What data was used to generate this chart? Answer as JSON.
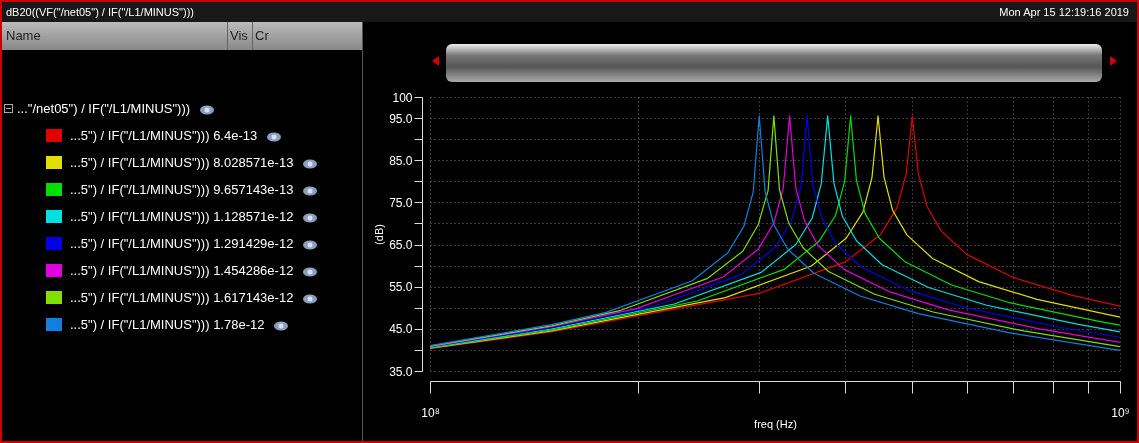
{
  "chart_data": {
    "type": "line",
    "title": "dB20((VF(\"/net05\") / IF(\"/L1/MINUS\")))",
    "xlabel": "freq (Hz)",
    "ylabel": "(dB)",
    "legend_title": "...\"/net05\") / IF(\"/L1/MINUS\")))",
    "legend": "left",
    "grid": true,
    "log": "x",
    "annotations": [
      "Name",
      "Vis",
      "Cr",
      "Mon Apr 15 12:19:16 2019"
    ],
    "xlim": [
      100000000,
      1000000000
    ],
    "ylim": [
      35,
      100
    ],
    "xticks": [
      {
        "value": 100000000,
        "label": "10⁸"
      },
      {
        "value": 200000000,
        "label": null
      },
      {
        "value": 300000000,
        "label": null
      },
      {
        "value": 400000000,
        "label": null
      },
      {
        "value": 500000000,
        "label": null
      },
      {
        "value": 600000000,
        "label": null
      },
      {
        "value": 700000000,
        "label": null
      },
      {
        "value": 800000000,
        "label": null
      },
      {
        "value": 900000000,
        "label": null
      },
      {
        "value": 1000000000,
        "label": "10⁹"
      }
    ],
    "yticks": [
      {
        "value": 35,
        "label": "35.0"
      },
      {
        "value": 40,
        "label": null
      },
      {
        "value": 45,
        "label": "45.0"
      },
      {
        "value": 50,
        "label": null
      },
      {
        "value": 55,
        "label": "55.0"
      },
      {
        "value": 60,
        "label": null
      },
      {
        "value": 65,
        "label": "65.0"
      },
      {
        "value": 70,
        "label": null
      },
      {
        "value": 75,
        "label": "75.0"
      },
      {
        "value": 80,
        "label": null
      },
      {
        "value": 85,
        "label": "85.0"
      },
      {
        "value": 90,
        "label": null
      },
      {
        "value": 95,
        "label": "95.0"
      },
      {
        "value": 100,
        "label": "100"
      }
    ],
    "series": [
      {
        "name": "...5\") / IF(\"/L1/MINUS\"))) 6.4e-13",
        "color": "#e00000",
        "x": [
          100000000,
          150000000,
          300000000,
          400000000,
          450000000,
          475000000,
          490000000,
          500000000,
          510000000,
          525000000,
          550000000,
          600000000,
          700000000,
          850000000,
          1000000000
        ],
        "values": [
          40.3,
          44.3,
          53.4,
          60.9,
          67.4,
          73.7,
          81.8,
          95.5,
          82.0,
          74.1,
          68.3,
          62.6,
          57.2,
          53.0,
          50.4
        ]
      },
      {
        "name": "...5\") / IF(\"/L1/MINUS\"))) 8.028571e-13",
        "color": "#e0e000",
        "x": [
          100000000,
          150000000,
          268000000,
          357000000,
          401000000,
          424000000,
          437000000,
          446000000,
          455000000,
          468000000,
          491000000,
          535000000,
          624000000,
          758000000,
          1000000000
        ],
        "values": [
          40.4,
          44.5,
          52.4,
          59.9,
          66.5,
          72.7,
          80.8,
          95.5,
          81.0,
          73.2,
          67.3,
          61.7,
          56.2,
          52.0,
          47.8
        ]
      },
      {
        "name": "...5\") / IF(\"/L1/MINUS\"))) 9.657143e-13",
        "color": "#00e000",
        "x": [
          100000000,
          150000000,
          244000000,
          326000000,
          366000000,
          387000000,
          399000000,
          407000000,
          415000000,
          427000000,
          448000000,
          488000000,
          570000000,
          692000000,
          936000000,
          1000000000
        ],
        "values": [
          40.5,
          44.7,
          51.6,
          59.1,
          65.7,
          71.9,
          80.0,
          95.5,
          80.2,
          72.4,
          66.5,
          60.9,
          55.4,
          51.2,
          46.7,
          45.9
        ]
      },
      {
        "name": "...5\") / IF(\"/L1/MINUS\"))) 1.128571e-12",
        "color": "#00e0e0",
        "x": [
          100000000,
          150000000,
          226000000,
          302000000,
          339000000,
          358000000,
          369000000,
          377000000,
          385000000,
          396000000,
          415000000,
          452000000,
          528000000,
          641000000,
          867000000,
          1000000000
        ],
        "values": [
          40.6,
          45.0,
          50.9,
          58.4,
          65.0,
          71.3,
          79.4,
          95.5,
          79.5,
          71.7,
          65.9,
          60.2,
          54.8,
          50.6,
          46.1,
          44.3
        ]
      },
      {
        "name": "...5\") / IF(\"/L1/MINUS\"))) 1.291429e-12",
        "color": "#0000e8",
        "x": [
          100000000,
          150000000,
          211000000,
          282000000,
          317000000,
          334000000,
          345000000,
          352000000,
          359000000,
          370000000,
          387000000,
          422000000,
          493000000,
          598000000,
          810000000,
          1000000000
        ],
        "values": [
          40.7,
          45.2,
          50.3,
          57.8,
          64.4,
          70.7,
          78.8,
          95.5,
          78.9,
          71.1,
          65.3,
          59.6,
          54.2,
          50.0,
          45.5,
          43.0
        ]
      },
      {
        "name": "...5\") / IF(\"/L1/MINUS\"))) 1.454286e-12",
        "color": "#e000e0",
        "x": [
          100000000,
          150000000,
          199000000,
          266000000,
          299000000,
          315000000,
          325000000,
          332000000,
          339000000,
          349000000,
          365000000,
          398000000,
          465000000,
          564000000,
          764000000,
          1000000000
        ],
        "values": [
          40.8,
          45.5,
          49.8,
          57.3,
          63.9,
          70.1,
          78.3,
          95.5,
          78.4,
          70.6,
          64.8,
          59.1,
          53.7,
          49.5,
          45.0,
          41.8
        ]
      },
      {
        "name": "...5\") / IF(\"/L1/MINUS\"))) 1.617143e-12",
        "color": "#80e000",
        "x": [
          100000000,
          150000000,
          189000000,
          252000000,
          284000000,
          299000000,
          309000000,
          315000000,
          321000000,
          331000000,
          347000000,
          378000000,
          441000000,
          536000000,
          725000000,
          1000000000
        ],
        "values": [
          40.9,
          45.7,
          49.4,
          56.9,
          63.4,
          69.7,
          77.8,
          95.5,
          78.0,
          70.1,
          64.3,
          58.6,
          53.2,
          49.0,
          44.5,
          40.8
        ]
      },
      {
        "name": "...5\") / IF(\"/L1/MINUS\"))) 1.78e-12",
        "color": "#1080e0",
        "x": [
          100000000,
          150000000,
          180000000,
          240000000,
          270000000,
          285000000,
          294000000,
          300000000,
          306000000,
          315000000,
          330000000,
          360000000,
          420000000,
          510000000,
          690000000,
          1000000000
        ],
        "values": [
          41.0,
          46.0,
          48.9,
          56.4,
          63.0,
          69.3,
          77.4,
          95.5,
          77.5,
          69.7,
          63.9,
          58.2,
          52.8,
          48.6,
          44.1,
          39.9
        ]
      }
    ]
  }
}
